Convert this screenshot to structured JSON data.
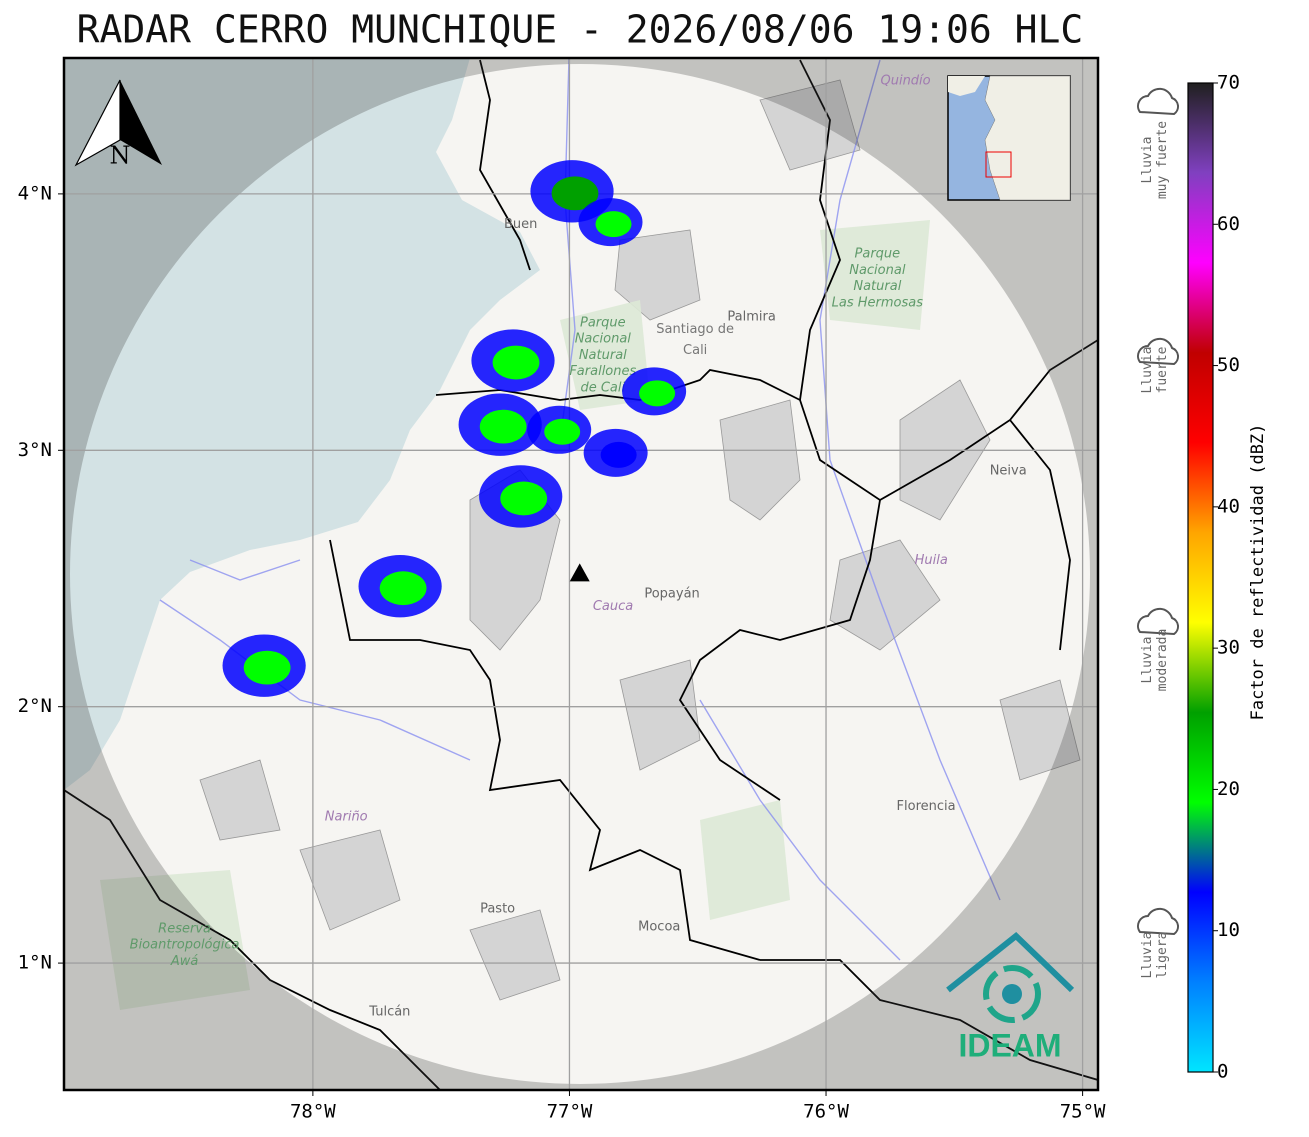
{
  "title": "RADAR CERRO MUNCHIQUE - 2026/08/06 19:06 HLC",
  "map": {
    "xlim": [
      -78.97,
      -74.94
    ],
    "ylim": [
      0.505,
      4.53
    ],
    "xticks": [
      {
        "value": -78,
        "label": "78°W"
      },
      {
        "value": -77,
        "label": "77°W"
      },
      {
        "value": -76,
        "label": "76°W"
      },
      {
        "value": -75,
        "label": "75°W"
      }
    ],
    "yticks": [
      {
        "value": 1,
        "label": "1°N"
      },
      {
        "value": 2,
        "label": "2°N"
      },
      {
        "value": 3,
        "label": "3°N"
      },
      {
        "value": 4,
        "label": "4°N"
      }
    ],
    "grid": true,
    "north_label": "N",
    "radar_site": {
      "lon": -76.96,
      "lat": 2.52
    },
    "places": [
      {
        "lines": [
          "Quindío"
        ],
        "lon": -75.69,
        "lat": 4.44,
        "kind": "region"
      },
      {
        "lines": [
          "Buen"
        ],
        "lon": -77.19,
        "lat": 3.88,
        "kind": "city"
      },
      {
        "lines": [
          "Santiago de",
          "Cali"
        ],
        "lon": -76.51,
        "lat": 3.43,
        "kind": "bigcity"
      },
      {
        "lines": [
          "Palmira"
        ],
        "lon": -76.29,
        "lat": 3.52,
        "kind": "city"
      },
      {
        "lines": [
          "Parque",
          "Nacional",
          "Natural",
          "Farallones",
          "de Cali"
        ],
        "lon": -76.87,
        "lat": 3.37,
        "kind": "park"
      },
      {
        "lines": [
          "Parque",
          "Nacional",
          "Natural",
          "Las Hermosas"
        ],
        "lon": -75.8,
        "lat": 3.67,
        "kind": "park"
      },
      {
        "lines": [
          "Neiva"
        ],
        "lon": -75.29,
        "lat": 2.92,
        "kind": "city"
      },
      {
        "lines": [
          "Huila"
        ],
        "lon": -75.59,
        "lat": 2.57,
        "kind": "region"
      },
      {
        "lines": [
          "Cauca"
        ],
        "lon": -76.83,
        "lat": 2.39,
        "kind": "region"
      },
      {
        "lines": [
          "Popayán"
        ],
        "lon": -76.6,
        "lat": 2.44,
        "kind": "city"
      },
      {
        "lines": [
          "Nariño"
        ],
        "lon": -77.87,
        "lat": 1.57,
        "kind": "region"
      },
      {
        "lines": [
          "Pasto"
        ],
        "lon": -77.28,
        "lat": 1.21,
        "kind": "city"
      },
      {
        "lines": [
          "Mocoa"
        ],
        "lon": -76.65,
        "lat": 1.14,
        "kind": "city"
      },
      {
        "lines": [
          "Florencia"
        ],
        "lon": -75.61,
        "lat": 1.61,
        "kind": "city"
      },
      {
        "lines": [
          "Tulcán"
        ],
        "lon": -77.7,
        "lat": 0.81,
        "kind": "city"
      },
      {
        "lines": [
          "Reserva",
          "Bioantropológica",
          "Awá"
        ],
        "lon": -78.5,
        "lat": 1.07,
        "kind": "park"
      }
    ],
    "echoes": [
      {
        "lon": -76.99,
        "lat": 4.01,
        "dbz": 25
      },
      {
        "lon": -76.84,
        "lat": 3.89,
        "dbz": 18
      },
      {
        "lon": -77.22,
        "lat": 3.35,
        "dbz": 22
      },
      {
        "lon": -77.27,
        "lat": 3.1,
        "dbz": 20
      },
      {
        "lon": -77.04,
        "lat": 3.08,
        "dbz": 18
      },
      {
        "lon": -77.19,
        "lat": 2.82,
        "dbz": 22
      },
      {
        "lon": -77.66,
        "lat": 2.47,
        "dbz": 20
      },
      {
        "lon": -78.19,
        "lat": 2.16,
        "dbz": 22
      },
      {
        "lon": -76.67,
        "lat": 3.23,
        "dbz": 18
      },
      {
        "lon": -76.82,
        "lat": 2.99,
        "dbz": 15
      }
    ],
    "logo": "IDEAM"
  },
  "colorbar": {
    "label": "Factor de reflectividad (dBZ)",
    "lim": [
      0,
      70
    ],
    "ticks": [
      0,
      10,
      20,
      30,
      40,
      50,
      60,
      70
    ],
    "colors": [
      "#00e5ff",
      "#0080ff",
      "#0000ff",
      "#00ff00",
      "#00a000",
      "#ffff00",
      "#ffa500",
      "#ff0000",
      "#c00000",
      "#ff00ff",
      "#8040c0",
      "#202020"
    ],
    "categories": [
      {
        "lines": [
          "Lluvia",
          "ligera"
        ]
      },
      {
        "lines": [
          "Lluvia",
          "moderada"
        ]
      },
      {
        "lines": [
          "Lluvia",
          "fuerte"
        ]
      },
      {
        "lines": [
          "Lluvia",
          "muy fuerte"
        ]
      }
    ]
  }
}
